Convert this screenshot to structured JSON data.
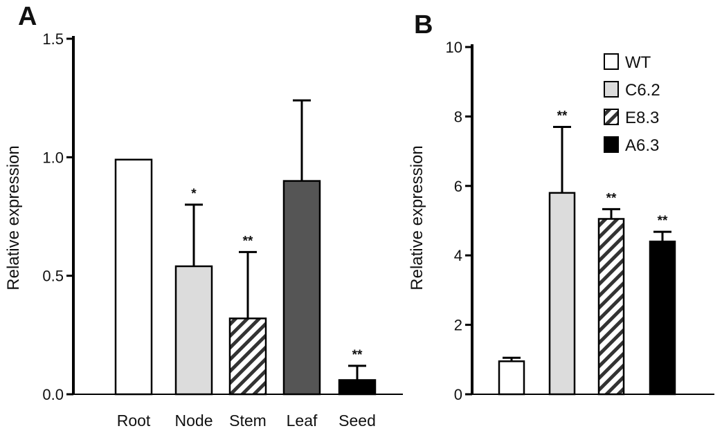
{
  "chart_data": [
    {
      "panel": "A",
      "type": "bar",
      "ylabel": "Relative expression",
      "ylim": [
        0,
        1.5
      ],
      "yticks": [
        "0.0",
        "0.5",
        "1.0",
        "1.5"
      ],
      "categories": [
        "Root",
        "Node",
        "Stem",
        "Leaf",
        "Seed"
      ],
      "values": [
        0.99,
        0.54,
        0.32,
        0.9,
        0.06
      ],
      "errors": [
        0,
        0.26,
        0.28,
        0.34,
        0.06
      ],
      "significance": [
        "",
        "*",
        "**",
        "",
        "**"
      ],
      "fills": [
        "white",
        "lightgray",
        "hatch",
        "darkgray",
        "black"
      ]
    },
    {
      "panel": "B",
      "type": "bar",
      "ylabel": "Relative expression",
      "ylim": [
        0,
        10
      ],
      "yticks": [
        "0",
        "2",
        "4",
        "6",
        "8",
        "10"
      ],
      "categories": [
        "WT",
        "C6.2",
        "E8.3",
        "A6.3"
      ],
      "values": [
        0.95,
        5.8,
        5.05,
        4.4
      ],
      "errors": [
        0.1,
        1.9,
        0.28,
        0.28
      ],
      "significance": [
        "",
        "**",
        "**",
        "**"
      ],
      "fills": [
        "white",
        "lightgray",
        "hatch",
        "black"
      ],
      "legend": [
        "WT",
        "C6.2",
        "E8.3",
        "A6.3"
      ]
    }
  ]
}
